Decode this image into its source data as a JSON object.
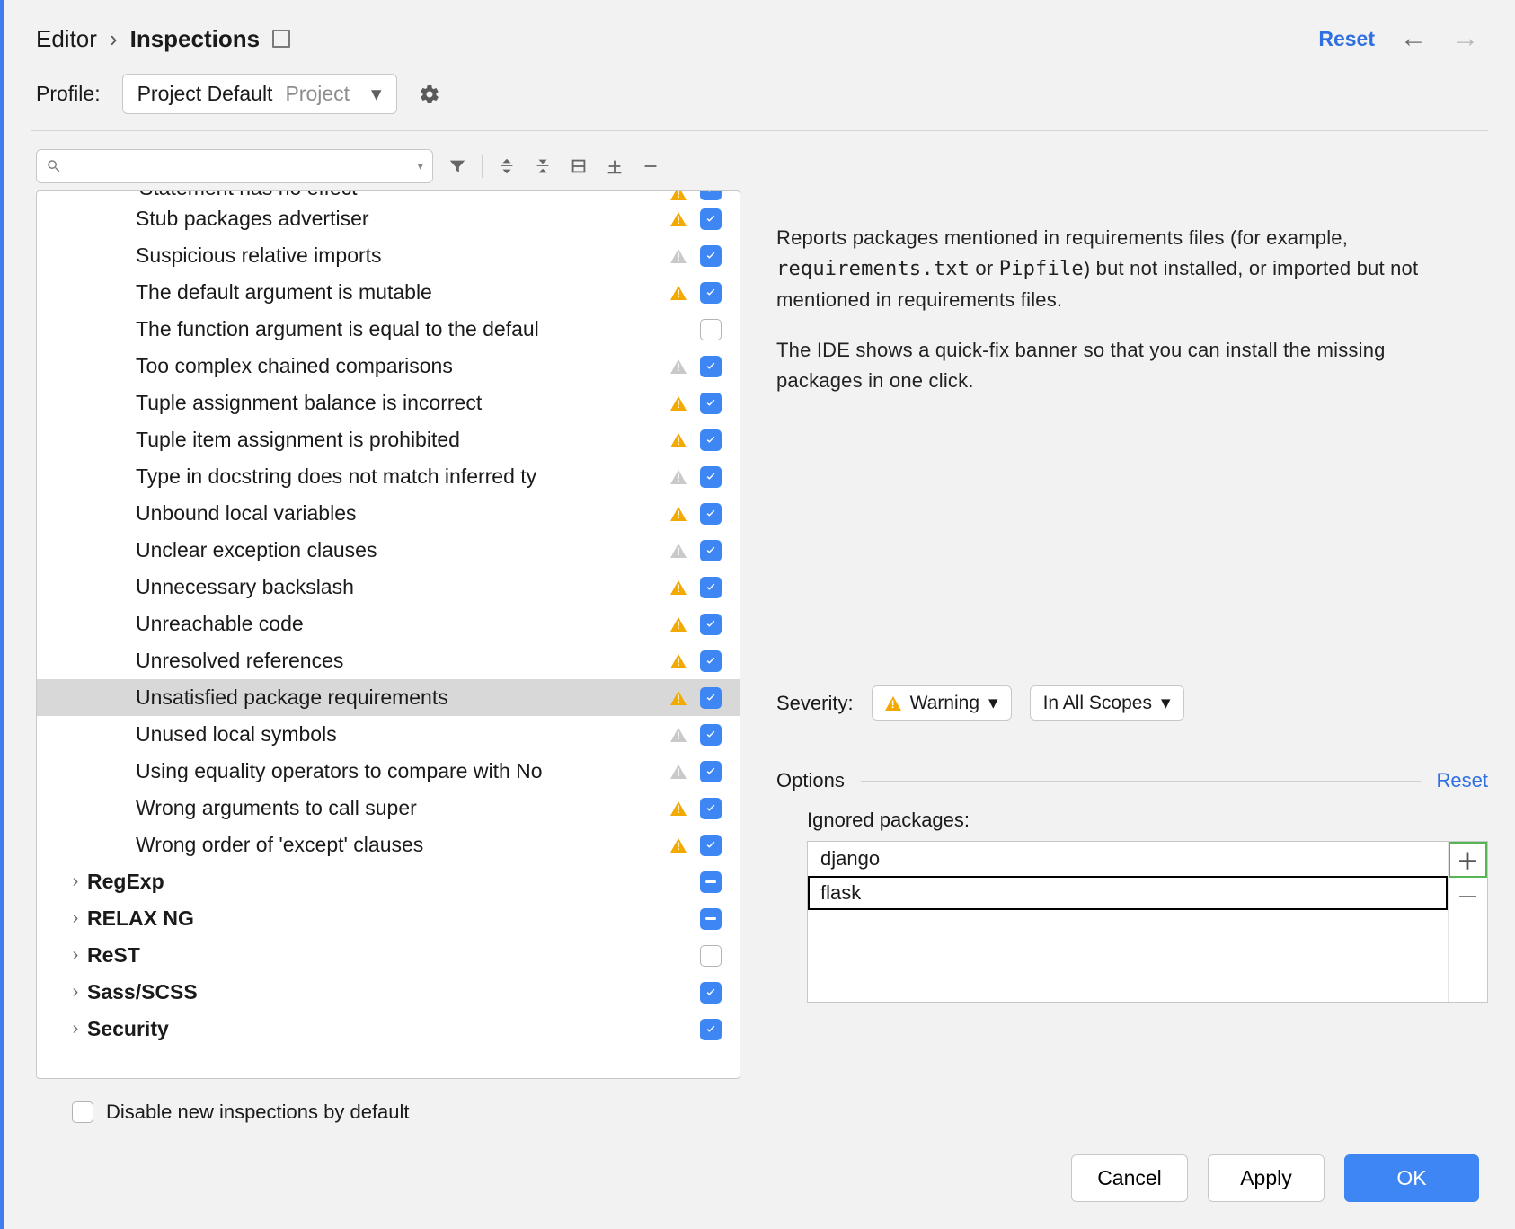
{
  "breadcrumb": {
    "parent": "Editor",
    "current": "Inspections"
  },
  "header": {
    "reset": "Reset"
  },
  "profile": {
    "label": "Profile:",
    "value": "Project Default",
    "scope": "Project"
  },
  "search": {
    "placeholder": ""
  },
  "tree": {
    "scroll_cut_top_label": "Statement has no effect",
    "items": [
      {
        "label": "Stub packages advertiser",
        "severity": "warn",
        "checked": true
      },
      {
        "label": "Suspicious relative imports",
        "severity": "weak",
        "checked": true
      },
      {
        "label": "The default argument is mutable",
        "severity": "warn",
        "checked": true
      },
      {
        "label": "The function argument is equal to the defaul",
        "severity": null,
        "checked": false
      },
      {
        "label": "Too complex chained comparisons",
        "severity": "weak",
        "checked": true
      },
      {
        "label": "Tuple assignment balance is incorrect",
        "severity": "warn",
        "checked": true
      },
      {
        "label": "Tuple item assignment is prohibited",
        "severity": "warn",
        "checked": true
      },
      {
        "label": "Type in docstring does not match inferred ty",
        "severity": "weak",
        "checked": true
      },
      {
        "label": "Unbound local variables",
        "severity": "warn",
        "checked": true
      },
      {
        "label": "Unclear exception clauses",
        "severity": "weak",
        "checked": true
      },
      {
        "label": "Unnecessary backslash",
        "severity": "warn",
        "checked": true
      },
      {
        "label": "Unreachable code",
        "severity": "warn",
        "checked": true
      },
      {
        "label": "Unresolved references",
        "severity": "warn",
        "checked": true
      },
      {
        "label": "Unsatisfied package requirements",
        "severity": "warn",
        "checked": true,
        "selected": true
      },
      {
        "label": "Unused local symbols",
        "severity": "weak",
        "checked": true
      },
      {
        "label": "Using equality operators to compare with No",
        "severity": "weak",
        "checked": true
      },
      {
        "label": "Wrong arguments to call super",
        "severity": "warn",
        "checked": true
      },
      {
        "label": "Wrong order of 'except' clauses",
        "severity": "warn",
        "checked": true
      }
    ],
    "groups": [
      {
        "label": "RegExp",
        "state": "mixed"
      },
      {
        "label": "RELAX NG",
        "state": "mixed"
      },
      {
        "label": "ReST",
        "state": "off"
      },
      {
        "label": "Sass/SCSS",
        "state": "on"
      },
      {
        "label": "Security",
        "state": "on"
      }
    ]
  },
  "description": {
    "p1a": "Reports packages mentioned in requirements files (for example, ",
    "c1": "requirements.txt",
    "p1b": " or ",
    "c2": "Pipfile",
    "p1c": ") but not installed, or imported but not mentioned in requirements files.",
    "p2": "The IDE shows a quick-fix banner so that you can install the missing packages in one click."
  },
  "severity": {
    "label": "Severity:",
    "value": "Warning",
    "scope": "In All Scopes"
  },
  "options": {
    "title": "Options",
    "reset": "Reset",
    "ignored_label": "Ignored packages:",
    "packages": [
      "django",
      "flask"
    ],
    "editing_index": 1
  },
  "disable_new": {
    "label": "Disable new inspections by default",
    "checked": false
  },
  "buttons": {
    "cancel": "Cancel",
    "apply": "Apply",
    "ok": "OK"
  },
  "colors": {
    "accent": "#3e86f3",
    "link": "#2f6fe0",
    "warn_triangle": "#f2a900",
    "weak_triangle": "#c9c9c9",
    "selection_bg": "#d8d8d8",
    "add_outline": "#56b356"
  }
}
